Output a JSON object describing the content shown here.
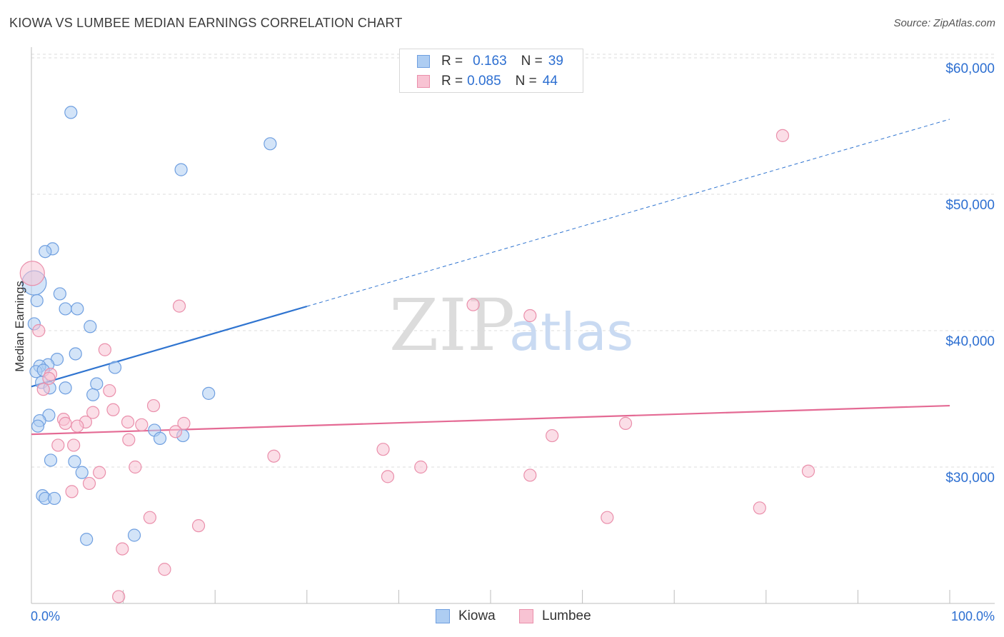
{
  "header": {
    "title": "KIOWA VS LUMBEE MEDIAN EARNINGS CORRELATION CHART",
    "source": "Source: ZipAtlas.com"
  },
  "watermark": {
    "zip": "ZIP",
    "atlas": "atlas"
  },
  "legend": {
    "rows": [
      {
        "r_label": "R =",
        "r_value": "0.163",
        "n_label": "N =",
        "n_value": "39"
      },
      {
        "r_label": "R =",
        "r_value": "0.085",
        "n_label": "N =",
        "n_value": "44"
      }
    ]
  },
  "bottom_legend": {
    "kiowa": "Kiowa",
    "lumbee": "Lumbee"
  },
  "colors": {
    "kiowa_fill": "#aecdf2",
    "kiowa_stroke": "#6f9fe0",
    "kiowa_line": "#2f74d0",
    "lumbee_fill": "#f8c3d3",
    "lumbee_stroke": "#ea8fab",
    "lumbee_line": "#e46a94",
    "axis_label": "#2d6fd1",
    "grid": "#dcdcdc"
  },
  "chart_data": {
    "type": "scatter",
    "title": "KIOWA VS LUMBEE MEDIAN EARNINGS CORRELATION CHART",
    "xlabel": "",
    "ylabel": "Median Earnings",
    "xlim": [
      0,
      100
    ],
    "ylim": [
      20000,
      62000
    ],
    "x_tick_labels": [
      "0.0%",
      "100.0%"
    ],
    "y_ticks": [
      30000,
      40000,
      50000,
      60000
    ],
    "y_tick_labels": [
      "$30,000",
      "$40,000",
      "$50,000",
      "$60,000"
    ],
    "grid": true,
    "series": [
      {
        "name": "Kiowa",
        "r": 0.163,
        "n": 39,
        "trend": {
          "x0": 0,
          "y0": 35900,
          "x1": 100,
          "y1": 55500,
          "solid_until_x": 30
        },
        "points": [
          {
            "x": 4.3,
            "y": 56000
          },
          {
            "x": 26,
            "y": 53700
          },
          {
            "x": 16.3,
            "y": 51800
          },
          {
            "x": 2.3,
            "y": 46000
          },
          {
            "x": 1.5,
            "y": 45800
          },
          {
            "x": 0.3,
            "y": 43500
          },
          {
            "x": 0.6,
            "y": 42200
          },
          {
            "x": 3.1,
            "y": 42700
          },
          {
            "x": 3.7,
            "y": 41600
          },
          {
            "x": 5,
            "y": 41600
          },
          {
            "x": 6.4,
            "y": 40300
          },
          {
            "x": 0.3,
            "y": 40500
          },
          {
            "x": 4.8,
            "y": 38300
          },
          {
            "x": 2.8,
            "y": 37900
          },
          {
            "x": 1.8,
            "y": 37500
          },
          {
            "x": 0.9,
            "y": 37400
          },
          {
            "x": 9.1,
            "y": 37300
          },
          {
            "x": 0.5,
            "y": 37000
          },
          {
            "x": 1.3,
            "y": 37100
          },
          {
            "x": 1.1,
            "y": 36200
          },
          {
            "x": 7.1,
            "y": 36100
          },
          {
            "x": 2,
            "y": 35800
          },
          {
            "x": 3.7,
            "y": 35800
          },
          {
            "x": 6.7,
            "y": 35300
          },
          {
            "x": 19.3,
            "y": 35400
          },
          {
            "x": 1.9,
            "y": 33800
          },
          {
            "x": 0.9,
            "y": 33400
          },
          {
            "x": 0.7,
            "y": 33000
          },
          {
            "x": 13.4,
            "y": 32700
          },
          {
            "x": 14,
            "y": 32100
          },
          {
            "x": 16.5,
            "y": 32300
          },
          {
            "x": 2.1,
            "y": 30500
          },
          {
            "x": 4.7,
            "y": 30400
          },
          {
            "x": 5.5,
            "y": 29600
          },
          {
            "x": 1.2,
            "y": 27900
          },
          {
            "x": 1.5,
            "y": 27700
          },
          {
            "x": 2.5,
            "y": 27700
          },
          {
            "x": 11.2,
            "y": 25000
          },
          {
            "x": 6,
            "y": 24700
          }
        ]
      },
      {
        "name": "Lumbee",
        "r": 0.085,
        "n": 44,
        "trend": {
          "x0": 0,
          "y0": 32400,
          "x1": 100,
          "y1": 34500
        },
        "points": [
          {
            "x": 0.1,
            "y": 44200
          },
          {
            "x": 81.8,
            "y": 54300
          },
          {
            "x": 16.1,
            "y": 41800
          },
          {
            "x": 48.1,
            "y": 41900
          },
          {
            "x": 54.3,
            "y": 41100
          },
          {
            "x": 0.8,
            "y": 40000
          },
          {
            "x": 8,
            "y": 38600
          },
          {
            "x": 2.1,
            "y": 36800
          },
          {
            "x": 1.9,
            "y": 36500
          },
          {
            "x": 1.3,
            "y": 35700
          },
          {
            "x": 8.5,
            "y": 35600
          },
          {
            "x": 13.3,
            "y": 34500
          },
          {
            "x": 8.9,
            "y": 34200
          },
          {
            "x": 6.7,
            "y": 34000
          },
          {
            "x": 3.5,
            "y": 33500
          },
          {
            "x": 3.7,
            "y": 33200
          },
          {
            "x": 5.9,
            "y": 33300
          },
          {
            "x": 10.5,
            "y": 33300
          },
          {
            "x": 12,
            "y": 33100
          },
          {
            "x": 16.6,
            "y": 33200
          },
          {
            "x": 5,
            "y": 33000
          },
          {
            "x": 64.7,
            "y": 33200
          },
          {
            "x": 15.7,
            "y": 32600
          },
          {
            "x": 56.7,
            "y": 32300
          },
          {
            "x": 10.6,
            "y": 32000
          },
          {
            "x": 2.9,
            "y": 31600
          },
          {
            "x": 4.6,
            "y": 31600
          },
          {
            "x": 38.3,
            "y": 31300
          },
          {
            "x": 26.4,
            "y": 30800
          },
          {
            "x": 11.3,
            "y": 30000
          },
          {
            "x": 42.4,
            "y": 30000
          },
          {
            "x": 84.6,
            "y": 29700
          },
          {
            "x": 7.4,
            "y": 29600
          },
          {
            "x": 38.8,
            "y": 29300
          },
          {
            "x": 54.3,
            "y": 29400
          },
          {
            "x": 6.3,
            "y": 28800
          },
          {
            "x": 4.4,
            "y": 28200
          },
          {
            "x": 79.3,
            "y": 27000
          },
          {
            "x": 12.9,
            "y": 26300
          },
          {
            "x": 62.7,
            "y": 26300
          },
          {
            "x": 18.2,
            "y": 25700
          },
          {
            "x": 9.9,
            "y": 24000
          },
          {
            "x": 14.5,
            "y": 22500
          },
          {
            "x": 9.5,
            "y": 20500
          }
        ]
      }
    ]
  }
}
